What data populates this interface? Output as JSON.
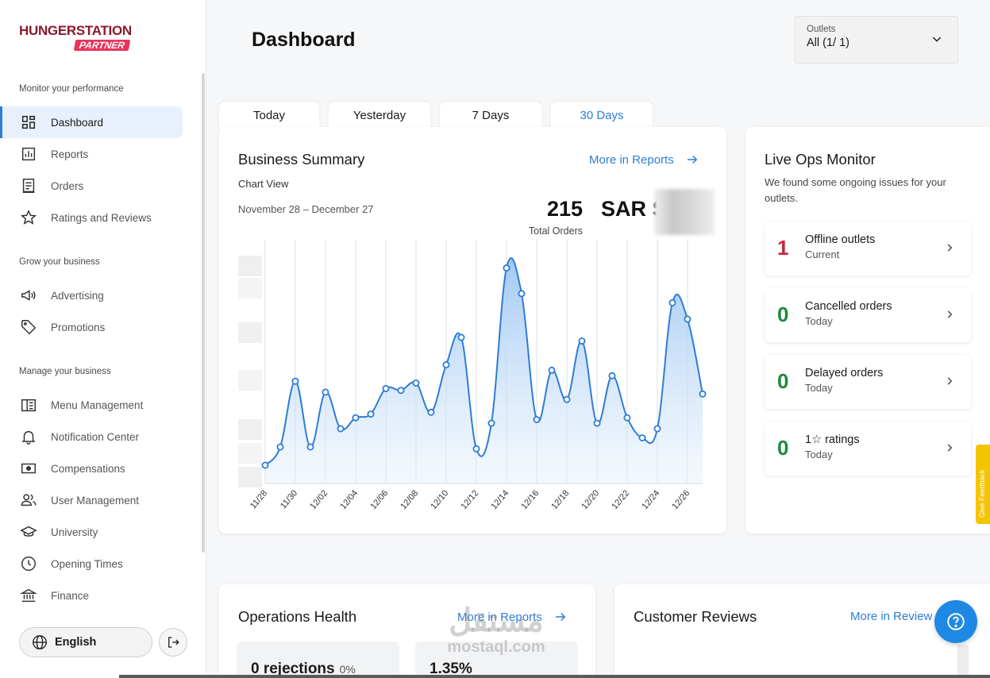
{
  "brand": {
    "line1": "HUNGERSTATION",
    "line2": "PARTNER"
  },
  "sidebar": {
    "section1": "Monitor your performance",
    "section2": "Grow your business",
    "section3": "Manage your business",
    "items": [
      {
        "label": "Dashboard",
        "icon": "dashboard-icon"
      },
      {
        "label": "Reports",
        "icon": "reports-icon"
      },
      {
        "label": "Orders",
        "icon": "orders-icon"
      },
      {
        "label": "Ratings and Reviews",
        "icon": "star-icon"
      },
      {
        "label": "Advertising",
        "icon": "megaphone-icon"
      },
      {
        "label": "Promotions",
        "icon": "tag-icon"
      },
      {
        "label": "Menu Management",
        "icon": "menu-book-icon"
      },
      {
        "label": "Notification Center",
        "icon": "bell-icon"
      },
      {
        "label": "Compensations",
        "icon": "money-icon"
      },
      {
        "label": "User Management",
        "icon": "users-icon"
      },
      {
        "label": "University",
        "icon": "graduation-cap-icon"
      },
      {
        "label": "Opening Times",
        "icon": "clock-icon"
      },
      {
        "label": "Finance",
        "icon": "bank-icon"
      }
    ],
    "language": "English"
  },
  "header": {
    "title": "Dashboard",
    "outlets_label": "Outlets",
    "outlets_value": "All (1/ 1)"
  },
  "tabs": [
    "Today",
    "Yesterday",
    "7 Days",
    "30 Days"
  ],
  "business_summary": {
    "title": "Business Summary",
    "more": "More in Reports",
    "chart_view": "Chart View",
    "date_range": "November 28 – December 27",
    "total_orders": "215",
    "total_orders_label": "Total Orders",
    "revenue": "SAR S"
  },
  "chart_data": {
    "type": "area",
    "title": "Business Summary",
    "xlabel": "",
    "ylabel": "",
    "x_tick_labels": [
      "11/28",
      "11/30",
      "12/02",
      "12/04",
      "12/06",
      "12/08",
      "12/10",
      "12/12",
      "12/14",
      "12/16",
      "12/18",
      "12/20",
      "12/22",
      "12/24",
      "12/26"
    ],
    "x": [
      "11/28",
      "11/29",
      "11/30",
      "12/01",
      "12/02",
      "12/03",
      "12/04",
      "12/05",
      "12/06",
      "12/07",
      "12/08",
      "12/09",
      "12/10",
      "12/11",
      "12/12",
      "12/13",
      "12/14",
      "12/15",
      "12/16",
      "12/17",
      "12/18",
      "12/19",
      "12/20",
      "12/21",
      "12/22",
      "12/23",
      "12/24",
      "12/25",
      "12/26",
      "12/27"
    ],
    "values": [
      1,
      2,
      5.6,
      2,
      5,
      3,
      3.6,
      3.8,
      5.2,
      5.1,
      5.5,
      3.9,
      6.5,
      8,
      1.9,
      3.3,
      11.8,
      10.4,
      3.5,
      6.2,
      4.6,
      7.8,
      3.3,
      5.9,
      3.6,
      2.5,
      3,
      9.9,
      9,
      4.9
    ],
    "ylim": [
      0,
      13
    ],
    "grid": true,
    "color": "#2e7cd6"
  },
  "live_ops": {
    "title": "Live Ops Monitor",
    "subtitle": "We found some ongoing issues for your outlets.",
    "items": [
      {
        "count": "1",
        "title": "Offline outlets",
        "sub": "Current",
        "color": "red"
      },
      {
        "count": "0",
        "title": "Cancelled orders",
        "sub": "Today",
        "color": "green"
      },
      {
        "count": "0",
        "title": "Delayed orders",
        "sub": "Today",
        "color": "green"
      },
      {
        "count": "0",
        "title": "1☆ ratings",
        "sub": "Today",
        "color": "green"
      }
    ]
  },
  "operations_health": {
    "title": "Operations Health",
    "more": "More in Reports",
    "rejections_big": "0 rejections",
    "rejections_small": "0%",
    "second_big": "1.35%"
  },
  "customer_reviews": {
    "title": "Customer Reviews",
    "more": "More in Review"
  },
  "feedback": "Give Feedback",
  "watermark": {
    "arabic": "مستقل",
    "latin": "mostaql.com"
  }
}
